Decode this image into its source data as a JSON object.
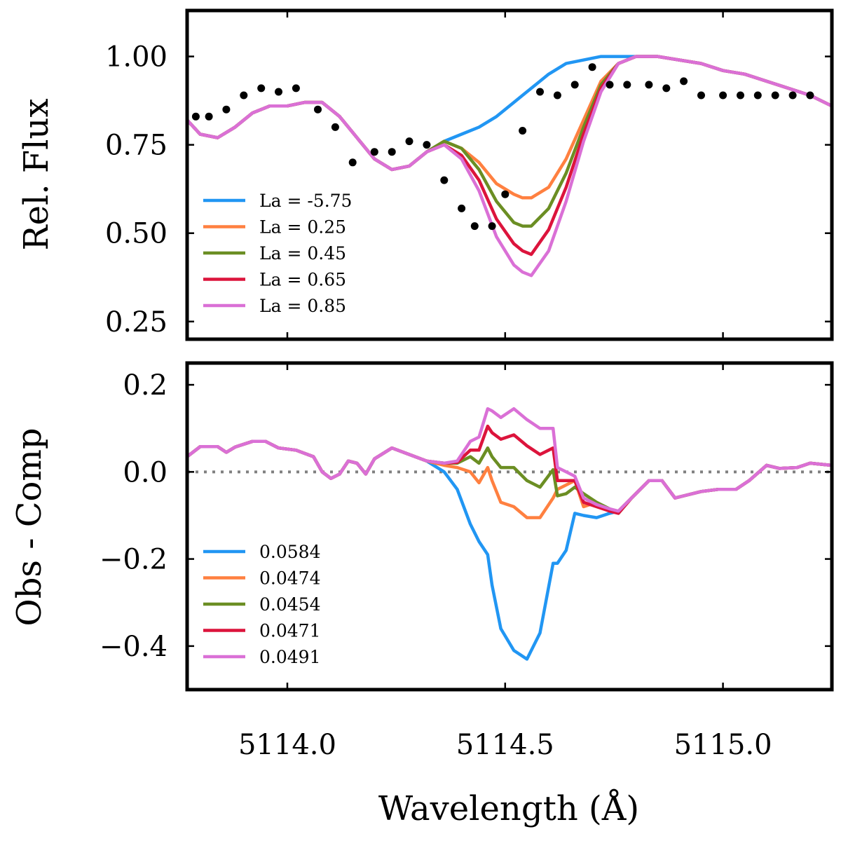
{
  "chart_data": [
    {
      "type": "line",
      "panel": "top",
      "ylabel": "Rel. Flux",
      "xlabel": "",
      "xlim": [
        5113.77,
        5115.25
      ],
      "ylim": [
        0.2,
        1.13
      ],
      "yticks": [
        0.25,
        0.5,
        0.75,
        1.0
      ],
      "ytick_labels": [
        "0.25",
        "0.50",
        "0.75",
        "1.00"
      ],
      "xticks": [
        5114.0,
        5114.5,
        5115.0
      ],
      "legend_position": "lower-left",
      "observed": {
        "name": "Observed",
        "color": "#000000",
        "x": [
          5113.79,
          5113.82,
          5113.86,
          5113.9,
          5113.94,
          5113.98,
          5114.02,
          5114.07,
          5114.11,
          5114.15,
          5114.2,
          5114.24,
          5114.28,
          5114.32,
          5114.36,
          5114.4,
          5114.43,
          5114.47,
          5114.5,
          5114.54,
          5114.58,
          5114.62,
          5114.66,
          5114.7,
          5114.74,
          5114.78,
          5114.83,
          5114.87,
          5114.91,
          5114.95,
          5115.0,
          5115.04,
          5115.08,
          5115.12,
          5115.16,
          5115.2
        ],
        "y": [
          0.83,
          0.83,
          0.85,
          0.89,
          0.91,
          0.9,
          0.91,
          0.85,
          0.8,
          0.7,
          0.73,
          0.73,
          0.76,
          0.75,
          0.65,
          0.57,
          0.52,
          0.52,
          0.61,
          0.79,
          0.9,
          0.89,
          0.92,
          0.97,
          0.92,
          0.92,
          0.92,
          0.91,
          0.93,
          0.89,
          0.89,
          0.89,
          0.89,
          0.89,
          0.89,
          0.89
        ]
      },
      "x": [
        5113.77,
        5113.8,
        5113.84,
        5113.88,
        5113.92,
        5113.96,
        5114.0,
        5114.04,
        5114.08,
        5114.12,
        5114.16,
        5114.2,
        5114.24,
        5114.28,
        5114.32,
        5114.36,
        5114.4,
        5114.44,
        5114.48,
        5114.52,
        5114.54,
        5114.56,
        5114.6,
        5114.64,
        5114.68,
        5114.72,
        5114.76,
        5114.8,
        5114.85,
        5114.9,
        5114.95,
        5115.0,
        5115.05,
        5115.1,
        5115.15,
        5115.2,
        5115.25
      ],
      "series": [
        {
          "name": "La = -5.75",
          "color": "#2196f3",
          "values": [
            0.82,
            0.78,
            0.77,
            0.8,
            0.84,
            0.86,
            0.86,
            0.87,
            0.87,
            0.83,
            0.77,
            0.71,
            0.68,
            0.69,
            0.73,
            0.76,
            0.78,
            0.8,
            0.83,
            0.87,
            0.89,
            0.91,
            0.95,
            0.98,
            0.99,
            1.0,
            1.0,
            1.0,
            1.0,
            0.99,
            0.98,
            0.96,
            0.95,
            0.93,
            0.91,
            0.89,
            0.86
          ]
        },
        {
          "name": "La = 0.25",
          "color": "#ff8040",
          "values": [
            0.82,
            0.78,
            0.77,
            0.8,
            0.84,
            0.86,
            0.86,
            0.87,
            0.87,
            0.83,
            0.77,
            0.71,
            0.68,
            0.69,
            0.73,
            0.76,
            0.74,
            0.7,
            0.64,
            0.61,
            0.6,
            0.6,
            0.63,
            0.71,
            0.82,
            0.93,
            0.98,
            1.0,
            1.0,
            0.99,
            0.98,
            0.96,
            0.95,
            0.93,
            0.91,
            0.89,
            0.86
          ]
        },
        {
          "name": "La = 0.45",
          "color": "#6b8e23",
          "values": [
            0.82,
            0.78,
            0.77,
            0.8,
            0.84,
            0.86,
            0.86,
            0.87,
            0.87,
            0.83,
            0.77,
            0.71,
            0.68,
            0.69,
            0.73,
            0.76,
            0.74,
            0.68,
            0.59,
            0.53,
            0.52,
            0.52,
            0.57,
            0.67,
            0.8,
            0.92,
            0.98,
            1.0,
            1.0,
            0.99,
            0.98,
            0.96,
            0.95,
            0.93,
            0.91,
            0.89,
            0.86
          ]
        },
        {
          "name": "La = 0.65",
          "color": "#dc143c",
          "values": [
            0.82,
            0.78,
            0.77,
            0.8,
            0.84,
            0.86,
            0.86,
            0.87,
            0.87,
            0.83,
            0.77,
            0.71,
            0.68,
            0.69,
            0.73,
            0.75,
            0.72,
            0.65,
            0.54,
            0.47,
            0.45,
            0.44,
            0.51,
            0.63,
            0.78,
            0.91,
            0.98,
            1.0,
            1.0,
            0.99,
            0.98,
            0.96,
            0.95,
            0.93,
            0.91,
            0.89,
            0.86
          ]
        },
        {
          "name": "La = 0.85",
          "color": "#da70d6",
          "values": [
            0.82,
            0.78,
            0.77,
            0.8,
            0.84,
            0.86,
            0.86,
            0.87,
            0.87,
            0.83,
            0.77,
            0.71,
            0.68,
            0.69,
            0.73,
            0.75,
            0.71,
            0.62,
            0.49,
            0.41,
            0.39,
            0.38,
            0.45,
            0.59,
            0.76,
            0.9,
            0.98,
            1.0,
            1.0,
            0.99,
            0.98,
            0.96,
            0.95,
            0.93,
            0.91,
            0.89,
            0.86
          ]
        }
      ]
    },
    {
      "type": "line",
      "panel": "bottom",
      "ylabel": "Obs - Comp",
      "xlabel": "Wavelength (Å)",
      "xlim": [
        5113.77,
        5115.25
      ],
      "ylim": [
        -0.5,
        0.25
      ],
      "yticks": [
        -0.4,
        -0.2,
        0.0,
        0.2
      ],
      "ytick_labels": [
        "−0.4",
        "−0.2",
        "0.0",
        "0.2"
      ],
      "xticks": [
        5114.0,
        5114.5,
        5115.0
      ],
      "xtick_labels": [
        "5114.0",
        "5114.5",
        "5115.0"
      ],
      "legend_position": "lower-left",
      "zero_line": 0.0,
      "x": [
        5113.77,
        5113.8,
        5113.84,
        5113.86,
        5113.88,
        5113.92,
        5113.95,
        5113.98,
        5114.02,
        5114.06,
        5114.08,
        5114.1,
        5114.12,
        5114.14,
        5114.16,
        5114.18,
        5114.2,
        5114.24,
        5114.28,
        5114.32,
        5114.36,
        5114.39,
        5114.42,
        5114.44,
        5114.46,
        5114.47,
        5114.49,
        5114.52,
        5114.55,
        5114.58,
        5114.61,
        5114.62,
        5114.64,
        5114.66,
        5114.68,
        5114.71,
        5114.74,
        5114.76,
        5114.79,
        5114.83,
        5114.86,
        5114.89,
        5114.91,
        5114.95,
        5114.99,
        5115.03,
        5115.06,
        5115.1,
        5115.13,
        5115.17,
        5115.2,
        5115.25
      ],
      "series": [
        {
          "name": "0.0584",
          "color": "#2196f3",
          "values": [
            0.035,
            0.058,
            0.058,
            0.045,
            0.057,
            0.07,
            0.07,
            0.055,
            0.05,
            0.035,
            0.0,
            -0.015,
            -0.005,
            0.025,
            0.02,
            -0.005,
            0.03,
            0.055,
            0.04,
            0.025,
            0.0,
            -0.04,
            -0.12,
            -0.16,
            -0.19,
            -0.26,
            -0.36,
            -0.41,
            -0.43,
            -0.37,
            -0.21,
            -0.21,
            -0.18,
            -0.095,
            -0.1,
            -0.105,
            -0.095,
            -0.09,
            -0.06,
            -0.02,
            -0.02,
            -0.06,
            -0.055,
            -0.045,
            -0.04,
            -0.04,
            -0.02,
            0.015,
            0.008,
            0.01,
            0.02,
            0.015
          ]
        },
        {
          "name": "0.0474",
          "color": "#ff8040",
          "values": [
            0.035,
            0.058,
            0.058,
            0.045,
            0.057,
            0.07,
            0.07,
            0.055,
            0.05,
            0.035,
            0.0,
            -0.015,
            -0.005,
            0.025,
            0.02,
            -0.005,
            0.03,
            0.055,
            0.04,
            0.025,
            0.015,
            0.01,
            0.0,
            -0.025,
            0.01,
            -0.02,
            -0.07,
            -0.08,
            -0.105,
            -0.105,
            -0.06,
            -0.04,
            -0.03,
            -0.02,
            -0.08,
            -0.07,
            -0.09,
            -0.09,
            -0.06,
            -0.02,
            -0.02,
            -0.06,
            -0.055,
            -0.045,
            -0.04,
            -0.04,
            -0.02,
            0.015,
            0.008,
            0.01,
            0.02,
            0.015
          ]
        },
        {
          "name": "0.0454",
          "color": "#6b8e23",
          "values": [
            0.035,
            0.058,
            0.058,
            0.045,
            0.057,
            0.07,
            0.07,
            0.055,
            0.05,
            0.035,
            0.0,
            -0.015,
            -0.005,
            0.025,
            0.02,
            -0.005,
            0.03,
            0.055,
            0.04,
            0.025,
            0.02,
            0.02,
            0.035,
            0.02,
            0.055,
            0.035,
            0.01,
            0.01,
            -0.02,
            -0.035,
            0.005,
            -0.055,
            -0.05,
            -0.035,
            -0.05,
            -0.07,
            -0.085,
            -0.095,
            -0.06,
            -0.02,
            -0.02,
            -0.06,
            -0.055,
            -0.045,
            -0.04,
            -0.04,
            -0.02,
            0.015,
            0.008,
            0.01,
            0.02,
            0.015
          ]
        },
        {
          "name": "0.0471",
          "color": "#dc143c",
          "values": [
            0.035,
            0.058,
            0.058,
            0.045,
            0.057,
            0.07,
            0.07,
            0.055,
            0.05,
            0.035,
            0.0,
            -0.015,
            -0.005,
            0.025,
            0.02,
            -0.005,
            0.03,
            0.055,
            0.04,
            0.025,
            0.02,
            0.022,
            0.05,
            0.05,
            0.105,
            0.09,
            0.075,
            0.085,
            0.06,
            0.04,
            0.055,
            -0.02,
            -0.02,
            -0.02,
            -0.07,
            -0.08,
            -0.09,
            -0.095,
            -0.06,
            -0.02,
            -0.02,
            -0.06,
            -0.055,
            -0.045,
            -0.04,
            -0.04,
            -0.02,
            0.015,
            0.008,
            0.01,
            0.02,
            0.015
          ]
        },
        {
          "name": "0.0491",
          "color": "#da70d6",
          "values": [
            0.035,
            0.058,
            0.058,
            0.045,
            0.057,
            0.07,
            0.07,
            0.055,
            0.05,
            0.035,
            0.0,
            -0.015,
            -0.005,
            0.025,
            0.02,
            -0.005,
            0.03,
            0.055,
            0.04,
            0.025,
            0.02,
            0.025,
            0.07,
            0.08,
            0.145,
            0.14,
            0.125,
            0.145,
            0.12,
            0.1,
            0.1,
            0.01,
            0.0,
            -0.01,
            -0.06,
            -0.075,
            -0.085,
            -0.09,
            -0.06,
            -0.02,
            -0.02,
            -0.06,
            -0.055,
            -0.045,
            -0.04,
            -0.04,
            -0.02,
            0.015,
            0.008,
            0.01,
            0.02,
            0.015
          ]
        }
      ]
    }
  ]
}
